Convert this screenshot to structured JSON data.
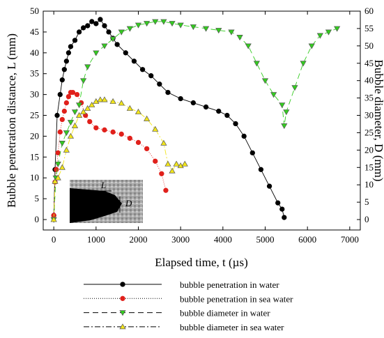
{
  "chart_data": {
    "type": "line",
    "xlabel": "Elapsed time, t (µs)",
    "ylabel": "Bubble penetration distance, L (mm)",
    "y2label": "Bubble diameter, D (mm)",
    "xlim": [
      -250,
      7250
    ],
    "xticks": [
      0,
      1000,
      2000,
      3000,
      4000,
      5000,
      6000,
      7000
    ],
    "ylim": [
      -2.5,
      50
    ],
    "yticks": [
      0,
      5,
      10,
      15,
      20,
      25,
      30,
      35,
      40,
      45,
      50
    ],
    "y2lim": [
      -3,
      60
    ],
    "y2ticks": [
      0,
      5,
      10,
      15,
      20,
      25,
      30,
      35,
      40,
      45,
      50,
      55,
      60
    ],
    "inset_labels": [
      "L",
      "D"
    ],
    "series": [
      {
        "name": "bubble penetration in water",
        "color": "#000000",
        "marker": "circle",
        "dash": "none",
        "x": [
          0,
          30,
          80,
          150,
          200,
          250,
          300,
          350,
          400,
          500,
          600,
          700,
          800,
          900,
          1000,
          1100,
          1200,
          1300,
          1400,
          1500,
          1700,
          1900,
          2100,
          2300,
          2500,
          2700,
          3000,
          3300,
          3600,
          3900,
          4100,
          4300,
          4500,
          4700,
          4900,
          5100,
          5300,
          5400,
          5450
        ],
        "values": [
          1,
          12,
          25,
          30,
          33.5,
          36,
          38,
          40,
          41.5,
          43,
          45,
          46,
          46.5,
          47.5,
          47,
          48,
          46.5,
          45,
          43.5,
          42,
          40,
          38,
          36,
          34.5,
          32.5,
          30.5,
          29,
          28,
          27,
          26,
          25,
          23,
          20,
          16,
          12,
          8,
          4,
          2.5,
          0.5
        ]
      },
      {
        "name": "bubble penetration in sea water",
        "color": "#e0201b",
        "marker": "circle",
        "dash": "1 2",
        "x": [
          0,
          30,
          60,
          100,
          150,
          200,
          250,
          300,
          350,
          400,
          450,
          550,
          650,
          750,
          850,
          1000,
          1200,
          1400,
          1600,
          1800,
          2000,
          2200,
          2400,
          2550,
          2650
        ],
        "values": [
          1,
          9,
          12,
          16,
          21,
          24,
          26,
          28,
          29.5,
          30.5,
          30.5,
          30,
          28,
          25,
          23.5,
          22,
          21.5,
          21,
          20.5,
          19.5,
          18.5,
          17,
          14,
          11,
          7
        ]
      },
      {
        "name": "bubble diameter in water",
        "color": "#33cc1f",
        "marker": "down",
        "dash": "8 5",
        "axis": "y2",
        "x": [
          0,
          50,
          100,
          200,
          300,
          400,
          500,
          600,
          700,
          800,
          1000,
          1200,
          1400,
          1600,
          1800,
          2000,
          2200,
          2400,
          2600,
          2800,
          3000,
          3300,
          3600,
          3900,
          4200,
          4400,
          4600,
          4800,
          5000,
          5200,
          5400,
          5450,
          5500,
          5700,
          5900,
          6100,
          6300,
          6500,
          6700
        ],
        "values": [
          0,
          12,
          16,
          22,
          25,
          28,
          31,
          33,
          40,
          44,
          48,
          50,
          52,
          54,
          55,
          56,
          56.5,
          57,
          57,
          56.5,
          56,
          55.5,
          55,
          54.5,
          54,
          52.5,
          50,
          45,
          40,
          36,
          33,
          27,
          31,
          38,
          45,
          50,
          53,
          54,
          55
        ]
      },
      {
        "name": "bubble diameter in sea water",
        "color": "#f2e51a",
        "marker": "up",
        "dash": "8 3 2 3",
        "axis": "y2",
        "x": [
          0,
          30,
          100,
          200,
          300,
          400,
          500,
          600,
          700,
          800,
          900,
          1000,
          1100,
          1200,
          1400,
          1600,
          1800,
          2000,
          2200,
          2400,
          2600,
          2700,
          2800,
          2900,
          3000,
          3100
        ],
        "values": [
          0,
          11,
          12,
          15,
          20,
          24,
          27,
          30,
          31,
          32,
          33,
          34,
          34.5,
          34.5,
          34,
          33.5,
          32,
          31,
          29,
          26,
          22,
          16,
          14,
          16,
          15.5,
          16
        ]
      }
    ]
  }
}
